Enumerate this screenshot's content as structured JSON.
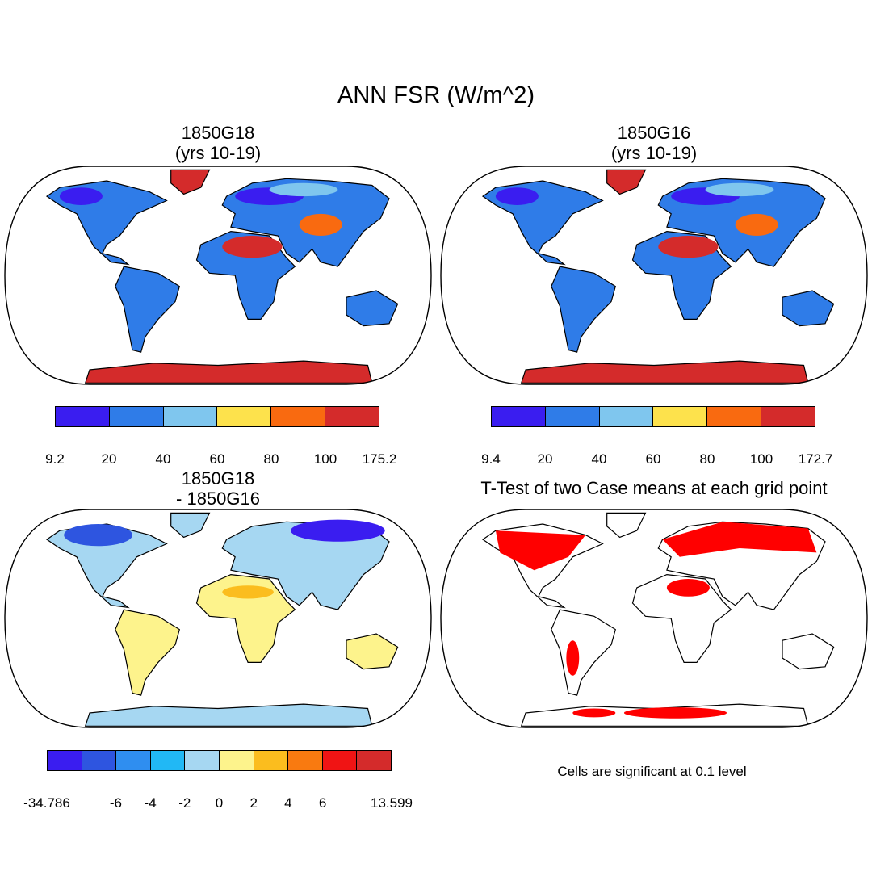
{
  "title": "ANN FSR (W/m^2)",
  "panels": {
    "p1": {
      "line1": "1850G18",
      "line2": "(yrs 10-19)"
    },
    "p2": {
      "line1": "1850G16",
      "line2": "(yrs 10-19)"
    },
    "p3": {
      "line1": "1850G18",
      "line2": "- 1850G16"
    },
    "p4": {
      "title": "T-Test of two Case means at each grid point"
    }
  },
  "colorbars": {
    "cb1": {
      "colors": [
        "#3a1df0",
        "#2f7ce8",
        "#7fc6ee",
        "#fde24c",
        "#f96a10",
        "#d42b2b"
      ],
      "labels": [
        "9.2",
        "20",
        "40",
        "60",
        "80",
        "100",
        "175.2"
      ]
    },
    "cb2": {
      "colors": [
        "#3a1df0",
        "#2f7ce8",
        "#7fc6ee",
        "#fde24c",
        "#f96a10",
        "#d42b2b"
      ],
      "labels": [
        "9.4",
        "20",
        "40",
        "60",
        "80",
        "100",
        "172.7"
      ]
    },
    "cb3": {
      "colors": [
        "#3a1df0",
        "#2e55e0",
        "#2f8ef0",
        "#21b8f5",
        "#a6d7f2",
        "#fdf38c",
        "#fbbd1e",
        "#f97a10",
        "#f01414",
        "#d42b2b"
      ],
      "labels": [
        "-34.786",
        "",
        "-6",
        "-4",
        "-2",
        "0",
        "2",
        "4",
        "6",
        "",
        "13.599"
      ]
    }
  },
  "note": "Cells are significant at 0.1 level",
  "map_colors": {
    "ocean": "#ffffff",
    "land_default": "#2f7ce8",
    "desert": "#d42b2b",
    "diff_land": "#fdf38c",
    "ttest_sig": "#ff0000"
  }
}
